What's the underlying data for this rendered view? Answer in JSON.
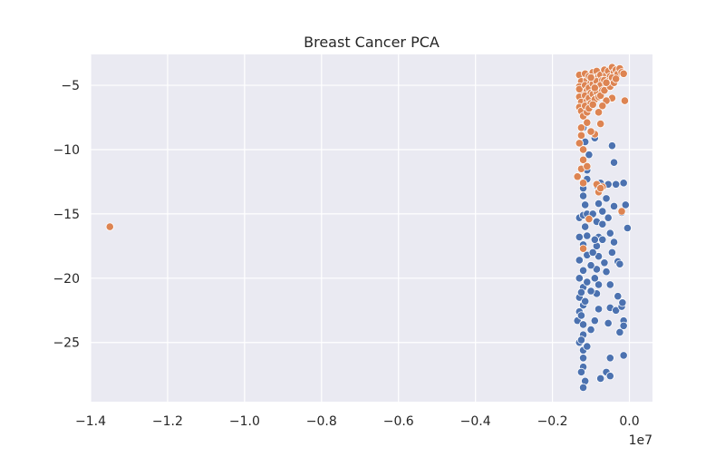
{
  "chart_data": {
    "type": "scatter",
    "title": "Breast Cancer PCA",
    "xlabel": "",
    "ylabel": "",
    "x_offset_label": "1e7",
    "xlim": [
      -1.4,
      0.06
    ],
    "ylim": [
      -29.6,
      -2.6
    ],
    "x_ticks": [
      -1.4,
      -1.2,
      -1.0,
      -0.8,
      -0.6,
      -0.4,
      -0.2,
      0.0
    ],
    "x_tick_labels": [
      "−1.4",
      "−1.2",
      "−1.0",
      "−0.8",
      "−0.6",
      "−0.4",
      "−0.2",
      "0.0"
    ],
    "y_ticks": [
      -5,
      -10,
      -15,
      -20,
      -25
    ],
    "y_tick_labels": [
      "−5",
      "−10",
      "−15",
      "−20",
      "−25"
    ],
    "grid": true,
    "background": "#eaeaf2",
    "series": [
      {
        "color": "#4c72b0",
        "points": [
          [
            -0.13,
            -15.3
          ],
          [
            -0.12,
            -15.1
          ],
          [
            -0.13,
            -16.8
          ],
          [
            -0.12,
            -17.4
          ],
          [
            -0.13,
            -18.6
          ],
          [
            -0.12,
            -19.4
          ],
          [
            -0.13,
            -20.0
          ],
          [
            -0.12,
            -20.7
          ],
          [
            -0.13,
            -21.5
          ],
          [
            -0.12,
            -22.1
          ],
          [
            -0.13,
            -22.6
          ],
          [
            -0.135,
            -23.3
          ],
          [
            -0.12,
            -23.6
          ],
          [
            -0.12,
            -24.4
          ],
          [
            -0.13,
            -25.0
          ],
          [
            -0.12,
            -25.6
          ],
          [
            -0.12,
            -26.2
          ],
          [
            -0.12,
            -26.9
          ],
          [
            -0.115,
            -28.0
          ],
          [
            -0.12,
            -28.5
          ],
          [
            -0.11,
            -25.3
          ],
          [
            -0.115,
            -21.8
          ],
          [
            -0.11,
            -20.3
          ],
          [
            -0.11,
            -18.2
          ],
          [
            -0.11,
            -16.7
          ],
          [
            -0.115,
            -16.0
          ],
          [
            -0.11,
            -15.0
          ],
          [
            -0.115,
            -14.3
          ],
          [
            -0.12,
            -13.6
          ],
          [
            -0.12,
            -13.0
          ],
          [
            -0.11,
            -12.3
          ],
          [
            -0.11,
            -11.6
          ],
          [
            -0.105,
            -10.4
          ],
          [
            -0.115,
            -9.4
          ],
          [
            -0.12,
            -8.3
          ],
          [
            -0.09,
            -9.1
          ],
          [
            -0.08,
            -14.2
          ],
          [
            -0.085,
            -15.6
          ],
          [
            -0.08,
            -16.8
          ],
          [
            -0.085,
            -17.5
          ],
          [
            -0.08,
            -18.3
          ],
          [
            -0.085,
            -19.3
          ],
          [
            -0.08,
            -20.5
          ],
          [
            -0.085,
            -21.2
          ],
          [
            -0.08,
            -22.4
          ],
          [
            -0.09,
            -23.3
          ],
          [
            -0.09,
            -20.0
          ],
          [
            -0.09,
            -17.0
          ],
          [
            -0.095,
            -15.0
          ],
          [
            -0.085,
            -12.8
          ],
          [
            -0.075,
            -12.6
          ],
          [
            -0.07,
            -14.8
          ],
          [
            -0.07,
            -15.8
          ],
          [
            -0.07,
            -17.0
          ],
          [
            -0.065,
            -18.8
          ],
          [
            -0.06,
            -19.5
          ],
          [
            -0.055,
            -15.3
          ],
          [
            -0.06,
            -13.8
          ],
          [
            -0.055,
            -12.7
          ],
          [
            -0.05,
            -16.5
          ],
          [
            -0.045,
            -18.0
          ],
          [
            -0.05,
            -20.5
          ],
          [
            -0.05,
            -22.3
          ],
          [
            -0.055,
            -23.5
          ],
          [
            -0.05,
            -26.2
          ],
          [
            -0.06,
            -27.3
          ],
          [
            -0.05,
            -27.6
          ],
          [
            -0.075,
            -27.8
          ],
          [
            -0.04,
            -17.2
          ],
          [
            -0.04,
            -14.4
          ],
          [
            -0.04,
            -11.0
          ],
          [
            -0.045,
            -9.7
          ],
          [
            -0.035,
            -12.7
          ],
          [
            -0.03,
            -18.7
          ],
          [
            -0.025,
            -18.9
          ],
          [
            -0.03,
            -21.4
          ],
          [
            -0.035,
            -22.5
          ],
          [
            -0.025,
            -24.2
          ],
          [
            -0.02,
            -22.2
          ],
          [
            -0.018,
            -21.9
          ],
          [
            -0.015,
            -23.3
          ],
          [
            -0.015,
            -23.7
          ],
          [
            -0.015,
            -26.0
          ],
          [
            -0.015,
            -12.6
          ],
          [
            -0.01,
            -14.3
          ],
          [
            -0.005,
            -16.1
          ],
          [
            -0.02,
            -14.9
          ],
          [
            -0.1,
            -19.0
          ],
          [
            -0.1,
            -21.0
          ],
          [
            -0.1,
            -24.0
          ],
          [
            -0.095,
            -18.0
          ],
          [
            -0.125,
            -27.3
          ],
          [
            -0.125,
            -24.8
          ],
          [
            -0.125,
            -22.9
          ],
          [
            -0.125,
            -21.1
          ]
        ]
      },
      {
        "color": "#dd8452",
        "points": [
          [
            -1.35,
            -16.0
          ],
          [
            -0.13,
            -4.2
          ],
          [
            -0.125,
            -4.7
          ],
          [
            -0.13,
            -5.1
          ],
          [
            -0.125,
            -5.5
          ],
          [
            -0.13,
            -5.9
          ],
          [
            -0.125,
            -6.3
          ],
          [
            -0.13,
            -6.7
          ],
          [
            -0.125,
            -7.0
          ],
          [
            -0.12,
            -7.4
          ],
          [
            -0.13,
            -5.3
          ],
          [
            -0.115,
            -4.1
          ],
          [
            -0.11,
            -4.6
          ],
          [
            -0.115,
            -5.0
          ],
          [
            -0.11,
            -5.4
          ],
          [
            -0.115,
            -5.8
          ],
          [
            -0.11,
            -6.2
          ],
          [
            -0.115,
            -6.6
          ],
          [
            -0.11,
            -7.1
          ],
          [
            -0.105,
            -4.3
          ],
          [
            -0.1,
            -4.8
          ],
          [
            -0.105,
            -5.2
          ],
          [
            -0.1,
            -5.6
          ],
          [
            -0.105,
            -6.0
          ],
          [
            -0.1,
            -6.4
          ],
          [
            -0.105,
            -6.8
          ],
          [
            -0.095,
            -4.0
          ],
          [
            -0.09,
            -4.5
          ],
          [
            -0.095,
            -4.9
          ],
          [
            -0.09,
            -5.3
          ],
          [
            -0.095,
            -5.7
          ],
          [
            -0.09,
            -6.1
          ],
          [
            -0.095,
            -6.5
          ],
          [
            -0.085,
            -3.9
          ],
          [
            -0.08,
            -4.3
          ],
          [
            -0.085,
            -4.7
          ],
          [
            -0.08,
            -5.1
          ],
          [
            -0.085,
            -5.5
          ],
          [
            -0.08,
            -5.9
          ],
          [
            -0.075,
            -4.2
          ],
          [
            -0.07,
            -4.6
          ],
          [
            -0.075,
            -5.0
          ],
          [
            -0.07,
            -5.4
          ],
          [
            -0.075,
            -5.8
          ],
          [
            -0.065,
            -3.8
          ],
          [
            -0.06,
            -4.2
          ],
          [
            -0.065,
            -4.6
          ],
          [
            -0.06,
            -5.0
          ],
          [
            -0.065,
            -5.4
          ],
          [
            -0.055,
            -3.9
          ],
          [
            -0.05,
            -4.3
          ],
          [
            -0.055,
            -4.7
          ],
          [
            -0.05,
            -5.1
          ],
          [
            -0.045,
            -3.6
          ],
          [
            -0.04,
            -4.0
          ],
          [
            -0.045,
            -4.4
          ],
          [
            -0.04,
            -4.8
          ],
          [
            -0.035,
            -3.8
          ],
          [
            -0.03,
            -4.1
          ],
          [
            -0.035,
            -4.5
          ],
          [
            -0.025,
            -3.7
          ],
          [
            -0.02,
            -4.0
          ],
          [
            -0.015,
            -4.1
          ],
          [
            -0.012,
            -6.2
          ],
          [
            -0.045,
            -6.0
          ],
          [
            -0.06,
            -6.2
          ],
          [
            -0.07,
            -6.6
          ],
          [
            -0.08,
            -7.1
          ],
          [
            -0.075,
            -8.0
          ],
          [
            -0.09,
            -8.8
          ],
          [
            -0.1,
            -8.6
          ],
          [
            -0.11,
            -7.9
          ],
          [
            -0.125,
            -8.3
          ],
          [
            -0.125,
            -8.9
          ],
          [
            -0.13,
            -9.5
          ],
          [
            -0.12,
            -10.0
          ],
          [
            -0.12,
            -10.8
          ],
          [
            -0.125,
            -11.5
          ],
          [
            -0.135,
            -12.1
          ],
          [
            -0.12,
            -12.6
          ],
          [
            -0.11,
            -11.3
          ],
          [
            -0.085,
            -12.7
          ],
          [
            -0.08,
            -13.3
          ],
          [
            -0.07,
            -12.9
          ],
          [
            -0.075,
            -13.0
          ],
          [
            -0.105,
            -15.4
          ],
          [
            -0.02,
            -14.8
          ],
          [
            -0.12,
            -17.7
          ],
          [
            -0.06,
            -4.8
          ],
          [
            -0.09,
            -5.2
          ],
          [
            -0.1,
            -4.4
          ]
        ]
      }
    ]
  }
}
